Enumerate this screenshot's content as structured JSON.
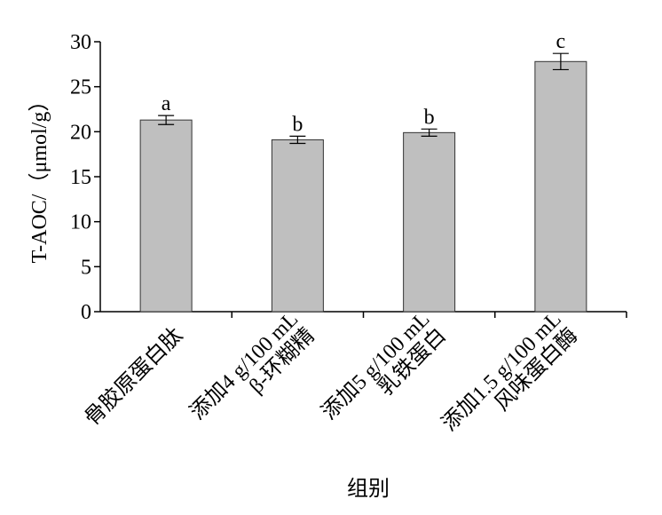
{
  "chart_data": {
    "type": "bar",
    "ylabel": "T-AOC/（μmol/g）",
    "xlabel": "组别",
    "categories": [
      [
        "骨胶原蛋白肽"
      ],
      [
        "添加4 g/100 mL",
        "β-环糊精"
      ],
      [
        "添加5 g/100 mL",
        "乳铁蛋白"
      ],
      [
        "添加1.5 g/100 mL",
        "风味蛋白酶"
      ]
    ],
    "values": [
      21.3,
      19.1,
      19.9,
      27.8
    ],
    "errors": [
      0.5,
      0.4,
      0.4,
      0.9
    ],
    "letters": [
      "a",
      "b",
      "b",
      "c"
    ],
    "color": "#bfbfbf",
    "ylim": [
      0,
      30
    ],
    "yticks": [
      0,
      5,
      10,
      15,
      20,
      25,
      30
    ]
  }
}
